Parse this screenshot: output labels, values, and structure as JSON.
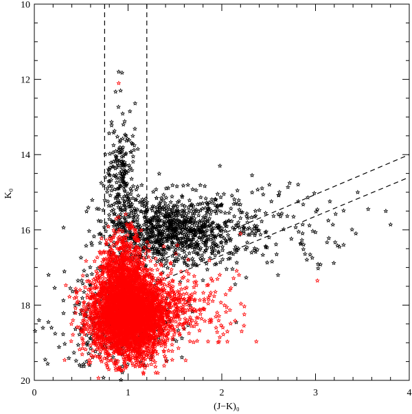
{
  "chart_data": {
    "type": "scatter",
    "title": "",
    "xlabel": "(J−K)₀",
    "ylabel": "K₀",
    "xlim": [
      0,
      4
    ],
    "ylim": [
      20,
      10
    ],
    "y_inverted": true,
    "grid": false,
    "legend": "none",
    "x_ticks": [
      0,
      1,
      2,
      3,
      4
    ],
    "y_ticks": [
      10,
      12,
      14,
      16,
      18,
      20
    ],
    "x_tick_labels": [
      "0",
      "1",
      "2",
      "3",
      "4"
    ],
    "y_tick_labels": [
      "10",
      "12",
      "14",
      "16",
      "18",
      "20"
    ],
    "marker": "star",
    "series": [
      {
        "color": "#000000",
        "clusters": [
          {
            "x_mean": 1.45,
            "x_sd": 0.35,
            "y_mean": 16.0,
            "y_sd": 0.45,
            "n": 900
          },
          {
            "x_mean": 0.93,
            "x_sd": 0.08,
            "y_mean": 14.7,
            "y_sd": 0.85,
            "n": 220
          },
          {
            "x_mean": 2.3,
            "x_sd": 0.55,
            "y_mean": 15.9,
            "y_sd": 0.55,
            "n": 180
          },
          {
            "x_mean": 0.9,
            "x_sd": 0.35,
            "y_mean": 18.4,
            "y_sd": 0.7,
            "n": 300
          }
        ],
        "points": [
          {
            "x": 0.9,
            "y": 11.8
          },
          {
            "x": 0.92,
            "y": 12.3
          },
          {
            "x": 1.02,
            "y": 12.85
          },
          {
            "x": 0.95,
            "y": 13.2
          },
          {
            "x": 0.05,
            "y": 18.4
          },
          {
            "x": 0.15,
            "y": 18.45
          },
          {
            "x": 1.98,
            "y": 14.3
          },
          {
            "x": 3.75,
            "y": 15.5
          },
          {
            "x": 3.45,
            "y": 15.0
          },
          {
            "x": 3.3,
            "y": 16.4
          },
          {
            "x": 2.6,
            "y": 17.2
          }
        ]
      },
      {
        "color": "#ff0000",
        "clusters": [
          {
            "x_mean": 1.0,
            "x_sd": 0.2,
            "y_mean": 18.3,
            "y_sd": 0.55,
            "n": 3500
          },
          {
            "x_mean": 0.95,
            "x_sd": 0.12,
            "y_mean": 17.2,
            "y_sd": 0.55,
            "n": 800
          },
          {
            "x_mean": 1.5,
            "x_sd": 0.35,
            "y_mean": 18.1,
            "y_sd": 0.5,
            "n": 350
          }
        ],
        "points": [
          {
            "x": 0.9,
            "y": 12.1
          },
          {
            "x": 3.02,
            "y": 17.35
          },
          {
            "x": 2.2,
            "y": 16.1
          }
        ]
      }
    ],
    "reference_lines": [
      {
        "style": "dashed",
        "x1": 0.75,
        "y1": 10,
        "x2": 0.75,
        "y2": 16.3
      },
      {
        "style": "dashed",
        "x1": 1.2,
        "y1": 10,
        "x2": 1.2,
        "y2": 16.7
      },
      {
        "style": "dashed",
        "x1": 1.4,
        "y1": 16.75,
        "x2": 4.0,
        "y2": 14.0
      },
      {
        "style": "dashed",
        "x1": 1.4,
        "y1": 17.3,
        "x2": 4.0,
        "y2": 14.6
      }
    ]
  }
}
